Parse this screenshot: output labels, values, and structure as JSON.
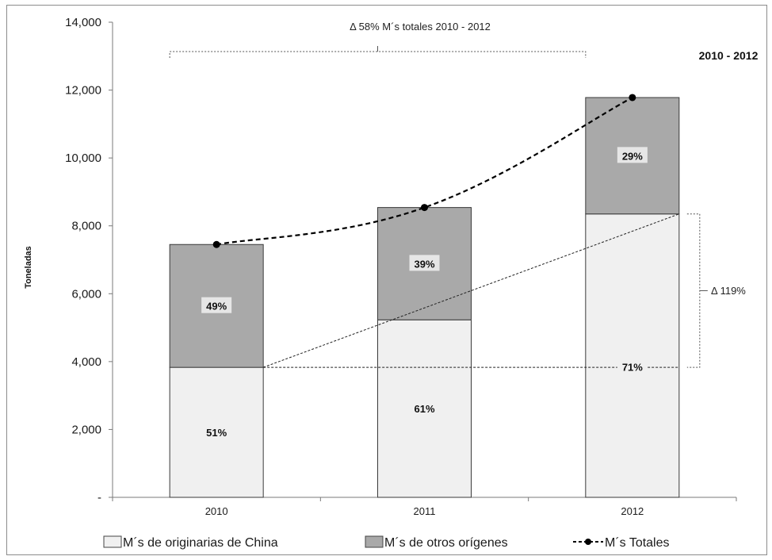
{
  "chart_data": {
    "type": "bar",
    "stacked": true,
    "categories": [
      "2010",
      "2011",
      "2012"
    ],
    "ylabel": "Toneladas",
    "ylim": [
      0,
      14000
    ],
    "yticks": [
      0,
      2000,
      4000,
      6000,
      8000,
      10000,
      12000,
      14000
    ],
    "ytick_labels": [
      "-",
      "2,000",
      "4,000",
      "6,000",
      "8,000",
      "10,000",
      "12,000",
      "14,000"
    ],
    "grid": false,
    "legend_position": "bottom",
    "series": [
      {
        "name": "M´s de originarias de China",
        "type": "bar",
        "values": [
          3830,
          5230,
          8350
        ],
        "color": "#f0f0f0",
        "labels": [
          "51%",
          "61%",
          "71%"
        ]
      },
      {
        "name": "M´s de otros orígenes",
        "type": "bar",
        "values": [
          3620,
          3310,
          3430
        ],
        "color": "#a9a9a9",
        "labels": [
          "49%",
          "39%",
          "29%"
        ]
      },
      {
        "name": "M´s Totales",
        "type": "line",
        "style": "dashed",
        "marker": "circle",
        "values": [
          7450,
          8540,
          11780
        ],
        "color": "#000000"
      }
    ],
    "annotations": {
      "top_bracket": "Δ 58% M´s totales 2010 - 2012",
      "side_bracket": "Δ 119%",
      "period": "2010 - 2012"
    }
  }
}
